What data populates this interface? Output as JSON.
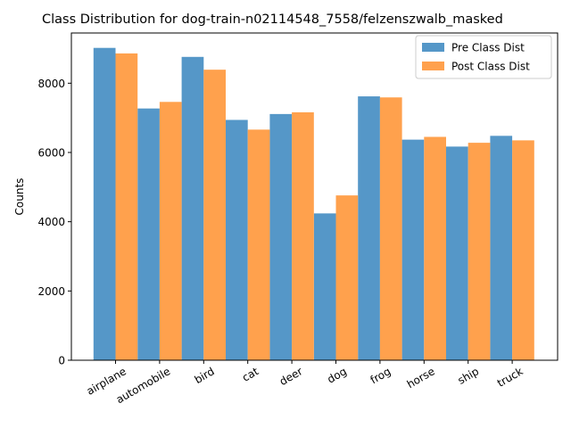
{
  "chart_data": {
    "type": "bar",
    "title": "Class Distribution for dog-train-n02114548_7558/felzenszwalb_masked",
    "xlabel": "",
    "ylabel": "Counts",
    "ylim": [
      0,
      9450
    ],
    "yticks": [
      0,
      2000,
      4000,
      6000,
      8000
    ],
    "categories": [
      "airplane",
      "automobile",
      "bird",
      "cat",
      "deer",
      "dog",
      "frog",
      "horse",
      "ship",
      "truck"
    ],
    "series": [
      {
        "name": "Pre Class Dist",
        "color": "#5597c8",
        "values": [
          9020,
          7270,
          8760,
          6940,
          7110,
          4240,
          7620,
          6370,
          6170,
          6480
        ]
      },
      {
        "name": "Post Class Dist",
        "color": "#ffa14d",
        "values": [
          8860,
          7460,
          8390,
          6660,
          7160,
          4760,
          7590,
          6450,
          6280,
          6350
        ]
      }
    ],
    "legend_position": "top-right",
    "grid": false
  }
}
